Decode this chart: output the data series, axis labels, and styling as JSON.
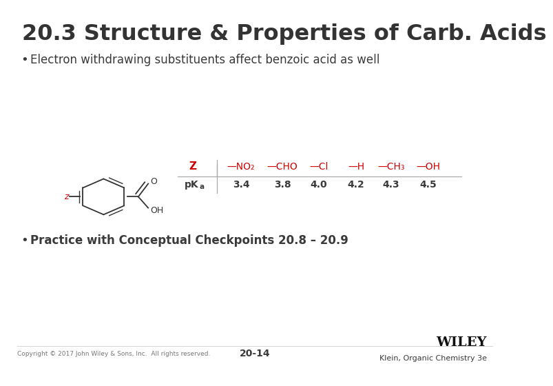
{
  "title": "20.3 Structure & Properties of Carb. Acids",
  "bullet1": "Electron withdrawing substituents affect benzoic acid as well",
  "bullet2": "Practice with Conceptual Checkpoints 20.8 – 20.9",
  "footer_left": "Copyright © 2017 John Wiley & Sons, Inc.  All rights reserved.",
  "footer_center": "20-14",
  "footer_right": "Klein, Organic Chemistry 3e",
  "footer_wiley": "WILEY",
  "table_headers": [
    "Z",
    "—NO₂",
    "—CHO",
    "—Cl",
    "—H",
    "—CH₃",
    "—OH"
  ],
  "table_pka": "pK",
  "table_pka_sub": "a",
  "table_values": [
    "3.4",
    "3.8",
    "4.0",
    "4.2",
    "4.3",
    "4.5"
  ],
  "red_color": "#CC0000",
  "dark_gray": "#3A3A3A",
  "medium_gray": "#555555",
  "light_gray": "#777777",
  "table_line_color": "#AAAAAA",
  "bg_color": "#FFFFFF",
  "title_color": "#333333"
}
